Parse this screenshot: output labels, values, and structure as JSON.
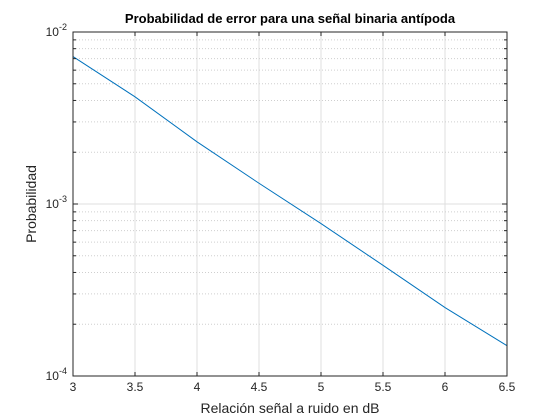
{
  "chart_data": {
    "type": "line",
    "title": "Probabilidad de error para una señal binaria antípoda",
    "xlabel": "Relación señal a ruido en dB",
    "ylabel": "Probabilidad",
    "xlim": [
      3,
      6.5
    ],
    "ylim": [
      0.0001,
      0.01
    ],
    "yscale": "log",
    "grid": true,
    "x_ticks": [
      "3",
      "3.5",
      "4",
      "4.5",
      "5",
      "5.5",
      "6",
      "6.5"
    ],
    "y_ticks": [
      {
        "base": "10",
        "exp": "-4"
      },
      {
        "base": "10",
        "exp": "-3"
      },
      {
        "base": "10",
        "exp": "-2"
      }
    ],
    "series": [
      {
        "color": "#0072BD",
        "x": [
          3.0,
          3.5,
          4.0,
          4.5,
          5.0,
          5.5,
          6.0,
          6.5
        ],
        "y": [
          0.0072,
          0.0042,
          0.0023,
          0.00132,
          0.00077,
          0.00044,
          0.00025,
          0.00015
        ]
      }
    ]
  }
}
